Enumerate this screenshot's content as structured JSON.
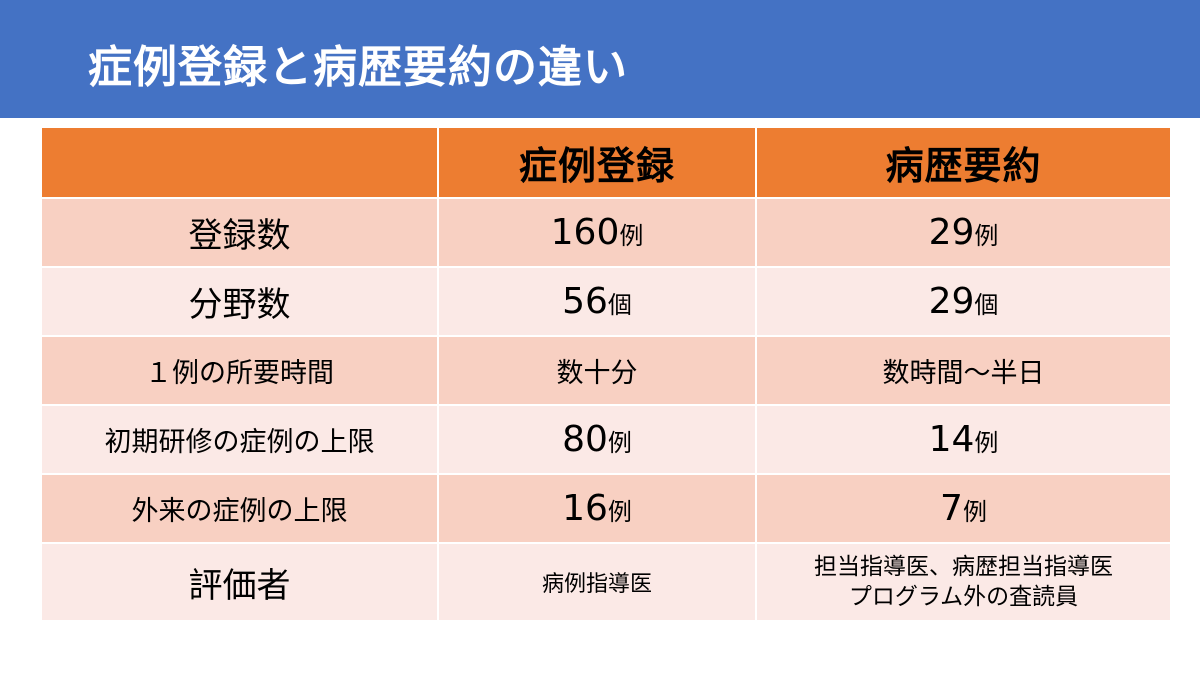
{
  "slide": {
    "title": "症例登録と病歴要約の違い"
  },
  "colors": {
    "header_bg": "#4472c4",
    "table_head_bg": "#ed7d31",
    "row_odd_bg": "#f8d0c2",
    "row_even_bg": "#fbe9e6"
  },
  "table": {
    "columns": [
      "",
      "症例登録",
      "病歴要約"
    ],
    "rows": [
      {
        "label": "登録数",
        "a_num": "160",
        "a_unit": "例",
        "b_num": "29",
        "b_unit": "例"
      },
      {
        "label": "分野数",
        "a_num": "56",
        "a_unit": "個",
        "b_num": "29",
        "b_unit": "個"
      },
      {
        "label": "１例の所要時間",
        "a_text": "数十分",
        "b_text": "数時間～半日"
      },
      {
        "label": "初期研修の症例の上限",
        "a_num": "80",
        "a_unit": "例",
        "b_num": "14",
        "b_unit": "例"
      },
      {
        "label": "外来の症例の上限",
        "a_num": "16",
        "a_unit": "例",
        "b_num": "7",
        "b_unit": "例"
      },
      {
        "label": "評価者",
        "a_text": "病例指導医",
        "b_line1": "担当指導医、病歴担当指導医",
        "b_line2": "プログラム外の査読員"
      }
    ]
  }
}
